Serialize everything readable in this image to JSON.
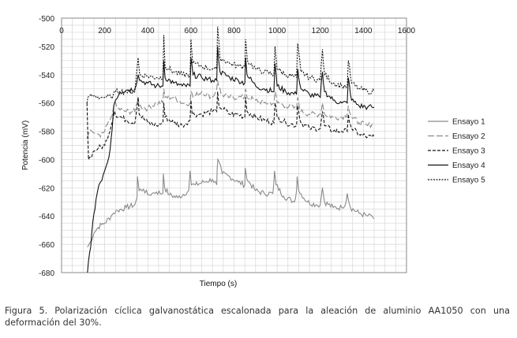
{
  "chart_data": {
    "type": "line",
    "xlabel": "Tiempo (s)",
    "ylabel": "Potencia (mV)",
    "xlim": [
      0,
      1600
    ],
    "ylim": [
      -680,
      -500
    ],
    "x_ticks": [
      0,
      200,
      400,
      600,
      800,
      1000,
      1200,
      1400,
      1600
    ],
    "y_ticks": [
      -500,
      -520,
      -540,
      -560,
      -580,
      -600,
      -620,
      -640,
      -660,
      -680
    ],
    "x_axis_position": "top",
    "grid": true,
    "legend_position": "right",
    "series": [
      {
        "name": "Ensayo 1",
        "style": "solid",
        "color": "#8a8a8a",
        "points": [
          [
            120,
            -662
          ],
          [
            135,
            -658
          ],
          [
            150,
            -652
          ],
          [
            170,
            -648
          ],
          [
            185,
            -646
          ],
          [
            200,
            -645
          ],
          [
            230,
            -640
          ],
          [
            240,
            -638
          ],
          [
            260,
            -636
          ],
          [
            300,
            -634
          ],
          [
            340,
            -632
          ],
          [
            350,
            -627
          ],
          [
            352,
            -612
          ],
          [
            360,
            -622
          ],
          [
            380,
            -621
          ],
          [
            400,
            -625
          ],
          [
            420,
            -624
          ],
          [
            440,
            -623
          ],
          [
            470,
            -624
          ],
          [
            471,
            -618
          ],
          [
            472,
            -610
          ],
          [
            478,
            -620
          ],
          [
            500,
            -625
          ],
          [
            540,
            -627
          ],
          [
            590,
            -622
          ],
          [
            596,
            -608
          ],
          [
            602,
            -618
          ],
          [
            620,
            -618
          ],
          [
            660,
            -616
          ],
          [
            700,
            -614
          ],
          [
            720,
            -618
          ],
          [
            722,
            -606
          ],
          [
            725,
            -600
          ],
          [
            745,
            -610
          ],
          [
            780,
            -612
          ],
          [
            820,
            -616
          ],
          [
            850,
            -618
          ],
          [
            852,
            -606
          ],
          [
            860,
            -614
          ],
          [
            900,
            -622
          ],
          [
            940,
            -624
          ],
          [
            980,
            -624
          ],
          [
            985,
            -616
          ],
          [
            988,
            -608
          ],
          [
            995,
            -618
          ],
          [
            1030,
            -626
          ],
          [
            1080,
            -630
          ],
          [
            1090,
            -622
          ],
          [
            1093,
            -612
          ],
          [
            1100,
            -622
          ],
          [
            1140,
            -630
          ],
          [
            1180,
            -632
          ],
          [
            1200,
            -632
          ],
          [
            1210,
            -620
          ],
          [
            1220,
            -630
          ],
          [
            1260,
            -634
          ],
          [
            1300,
            -634
          ],
          [
            1320,
            -630
          ],
          [
            1325,
            -624
          ],
          [
            1340,
            -634
          ],
          [
            1380,
            -638
          ],
          [
            1420,
            -640
          ],
          [
            1440,
            -640
          ],
          [
            1450,
            -642
          ]
        ]
      },
      {
        "name": "Ensayo 2",
        "style": "dashed-long",
        "color": "#8a8a8a",
        "points": [
          [
            118,
            -585
          ],
          [
            125,
            -582
          ],
          [
            140,
            -580
          ],
          [
            160,
            -582
          ],
          [
            180,
            -584
          ],
          [
            200,
            -580
          ],
          [
            230,
            -570
          ],
          [
            240,
            -564
          ],
          [
            245,
            -560
          ],
          [
            260,
            -564
          ],
          [
            300,
            -566
          ],
          [
            340,
            -566
          ],
          [
            355,
            -556
          ],
          [
            360,
            -562
          ],
          [
            400,
            -564
          ],
          [
            440,
            -560
          ],
          [
            470,
            -560
          ],
          [
            474,
            -550
          ],
          [
            480,
            -556
          ],
          [
            520,
            -556
          ],
          [
            560,
            -560
          ],
          [
            596,
            -560
          ],
          [
            600,
            -552
          ],
          [
            610,
            -556
          ],
          [
            650,
            -552
          ],
          [
            700,
            -556
          ],
          [
            720,
            -550
          ],
          [
            724,
            -544
          ],
          [
            740,
            -554
          ],
          [
            780,
            -556
          ],
          [
            820,
            -556
          ],
          [
            850,
            -556
          ],
          [
            854,
            -550
          ],
          [
            860,
            -556
          ],
          [
            900,
            -558
          ],
          [
            940,
            -560
          ],
          [
            985,
            -560
          ],
          [
            990,
            -552
          ],
          [
            1000,
            -560
          ],
          [
            1040,
            -562
          ],
          [
            1090,
            -564
          ],
          [
            1095,
            -556
          ],
          [
            1110,
            -566
          ],
          [
            1150,
            -568
          ],
          [
            1200,
            -568
          ],
          [
            1210,
            -560
          ],
          [
            1220,
            -568
          ],
          [
            1260,
            -570
          ],
          [
            1300,
            -570
          ],
          [
            1325,
            -568
          ],
          [
            1330,
            -562
          ],
          [
            1345,
            -570
          ],
          [
            1380,
            -574
          ],
          [
            1420,
            -576
          ],
          [
            1440,
            -575
          ],
          [
            1450,
            -574
          ]
        ]
      },
      {
        "name": "Ensayo 3",
        "style": "dashed",
        "color": "#111111",
        "points": [
          [
            118,
            -560
          ],
          [
            125,
            -600
          ],
          [
            135,
            -598
          ],
          [
            150,
            -594
          ],
          [
            170,
            -592
          ],
          [
            200,
            -590
          ],
          [
            230,
            -576
          ],
          [
            240,
            -570
          ],
          [
            245,
            -566
          ],
          [
            250,
            -568
          ],
          [
            300,
            -572
          ],
          [
            340,
            -574
          ],
          [
            355,
            -556
          ],
          [
            360,
            -568
          ],
          [
            400,
            -574
          ],
          [
            440,
            -576
          ],
          [
            470,
            -574
          ],
          [
            474,
            -560
          ],
          [
            480,
            -570
          ],
          [
            520,
            -574
          ],
          [
            560,
            -576
          ],
          [
            596,
            -572
          ],
          [
            600,
            -558
          ],
          [
            606,
            -568
          ],
          [
            650,
            -568
          ],
          [
            700,
            -566
          ],
          [
            720,
            -566
          ],
          [
            724,
            -552
          ],
          [
            730,
            -562
          ],
          [
            780,
            -568
          ],
          [
            820,
            -568
          ],
          [
            850,
            -570
          ],
          [
            854,
            -556
          ],
          [
            860,
            -566
          ],
          [
            900,
            -570
          ],
          [
            940,
            -572
          ],
          [
            985,
            -574
          ],
          [
            990,
            -560
          ],
          [
            1000,
            -570
          ],
          [
            1040,
            -574
          ],
          [
            1090,
            -576
          ],
          [
            1095,
            -562
          ],
          [
            1110,
            -574
          ],
          [
            1150,
            -578
          ],
          [
            1200,
            -578
          ],
          [
            1210,
            -566
          ],
          [
            1220,
            -576
          ],
          [
            1260,
            -580
          ],
          [
            1300,
            -580
          ],
          [
            1325,
            -580
          ],
          [
            1330,
            -568
          ],
          [
            1345,
            -578
          ],
          [
            1380,
            -582
          ],
          [
            1420,
            -584
          ],
          [
            1440,
            -584
          ],
          [
            1450,
            -584
          ]
        ]
      },
      {
        "name": "Ensayo 4",
        "style": "solid",
        "color": "#111111",
        "points": [
          [
            120,
            -680
          ],
          [
            125,
            -672
          ],
          [
            135,
            -662
          ],
          [
            145,
            -644
          ],
          [
            160,
            -628
          ],
          [
            180,
            -616
          ],
          [
            200,
            -608
          ],
          [
            220,
            -598
          ],
          [
            235,
            -578
          ],
          [
            242,
            -562
          ],
          [
            250,
            -558
          ],
          [
            270,
            -552
          ],
          [
            300,
            -551
          ],
          [
            340,
            -550
          ],
          [
            355,
            -540
          ],
          [
            362,
            -544
          ],
          [
            400,
            -546
          ],
          [
            440,
            -548
          ],
          [
            470,
            -548
          ],
          [
            474,
            -530
          ],
          [
            480,
            -542
          ],
          [
            520,
            -546
          ],
          [
            560,
            -548
          ],
          [
            596,
            -548
          ],
          [
            600,
            -528
          ],
          [
            610,
            -540
          ],
          [
            650,
            -542
          ],
          [
            700,
            -544
          ],
          [
            720,
            -544
          ],
          [
            724,
            -520
          ],
          [
            735,
            -538
          ],
          [
            780,
            -542
          ],
          [
            820,
            -544
          ],
          [
            850,
            -546
          ],
          [
            854,
            -528
          ],
          [
            860,
            -540
          ],
          [
            900,
            -548
          ],
          [
            940,
            -550
          ],
          [
            985,
            -552
          ],
          [
            990,
            -532
          ],
          [
            1000,
            -548
          ],
          [
            1040,
            -552
          ],
          [
            1090,
            -554
          ],
          [
            1095,
            -536
          ],
          [
            1110,
            -550
          ],
          [
            1150,
            -554
          ],
          [
            1200,
            -556
          ],
          [
            1210,
            -538
          ],
          [
            1220,
            -552
          ],
          [
            1260,
            -558
          ],
          [
            1300,
            -560
          ],
          [
            1325,
            -560
          ],
          [
            1330,
            -542
          ],
          [
            1345,
            -558
          ],
          [
            1380,
            -562
          ],
          [
            1420,
            -563
          ],
          [
            1440,
            -563
          ],
          [
            1450,
            -563
          ]
        ]
      },
      {
        "name": "Ensayo 5",
        "style": "dotted",
        "color": "#111111",
        "points": [
          [
            118,
            -560
          ],
          [
            122,
            -556
          ],
          [
            130,
            -555
          ],
          [
            150,
            -555
          ],
          [
            180,
            -556
          ],
          [
            200,
            -556
          ],
          [
            230,
            -556
          ],
          [
            240,
            -554
          ],
          [
            250,
            -552
          ],
          [
            300,
            -552
          ],
          [
            340,
            -552
          ],
          [
            355,
            -528
          ],
          [
            362,
            -540
          ],
          [
            400,
            -541
          ],
          [
            440,
            -542
          ],
          [
            470,
            -542
          ],
          [
            474,
            -512
          ],
          [
            480,
            -534
          ],
          [
            520,
            -538
          ],
          [
            560,
            -540
          ],
          [
            596,
            -540
          ],
          [
            600,
            -515
          ],
          [
            608,
            -532
          ],
          [
            650,
            -534
          ],
          [
            700,
            -536
          ],
          [
            720,
            -536
          ],
          [
            724,
            -506
          ],
          [
            735,
            -528
          ],
          [
            780,
            -532
          ],
          [
            820,
            -534
          ],
          [
            850,
            -534
          ],
          [
            854,
            -515
          ],
          [
            862,
            -530
          ],
          [
            900,
            -536
          ],
          [
            940,
            -538
          ],
          [
            985,
            -540
          ],
          [
            990,
            -520
          ],
          [
            1000,
            -536
          ],
          [
            1040,
            -540
          ],
          [
            1090,
            -542
          ],
          [
            1095,
            -518
          ],
          [
            1110,
            -538
          ],
          [
            1150,
            -542
          ],
          [
            1200,
            -544
          ],
          [
            1210,
            -522
          ],
          [
            1220,
            -540
          ],
          [
            1260,
            -546
          ],
          [
            1300,
            -548
          ],
          [
            1325,
            -548
          ],
          [
            1330,
            -530
          ],
          [
            1345,
            -546
          ],
          [
            1380,
            -550
          ],
          [
            1420,
            -552
          ],
          [
            1440,
            -552
          ],
          [
            1450,
            -552
          ]
        ]
      }
    ]
  },
  "caption": "Figura 5. Polarización cíclica galvanostática escalonada para la aleación de aluminio AA1050 con una deformación del 30%."
}
